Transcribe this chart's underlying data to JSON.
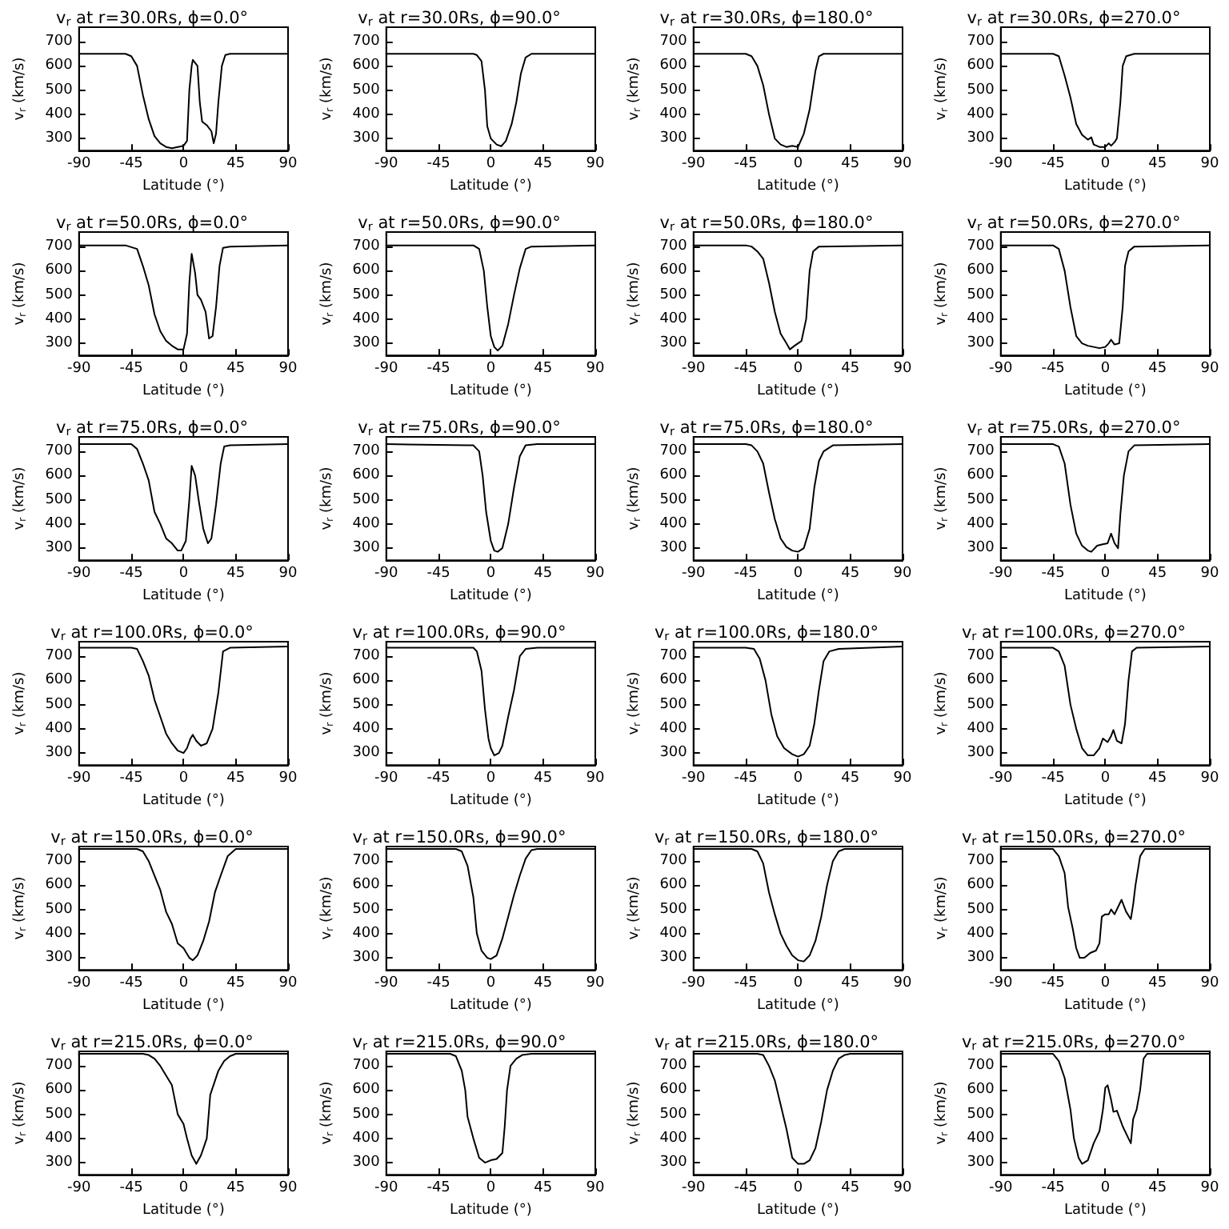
{
  "chart_data": [
    {
      "type": "line",
      "title": "v$_{r}$ at r=30.0Rs, ϕ=0.0°",
      "xlabel": "Latitude (°)",
      "ylabel": "v$_{r}$ (km/s)",
      "xlim": [
        -90,
        90
      ],
      "xticks": [
        -90,
        -45,
        0,
        45,
        90
      ],
      "ylim": [
        250,
        760
      ],
      "yticks": [
        300,
        400,
        500,
        600,
        700
      ],
      "grid": false,
      "marker": "none",
      "line_style": "solid",
      "series": [
        {
          "color": "#000000",
          "x": [
            -90,
            -50,
            -45,
            -40,
            -35,
            -30,
            -25,
            -20,
            -15,
            -10,
            -5,
            0,
            3,
            5,
            7,
            8,
            12,
            14,
            16,
            20,
            24,
            26,
            28,
            30,
            33,
            36,
            40,
            90
          ],
          "values": [
            650,
            650,
            640,
            600,
            480,
            380,
            310,
            280,
            265,
            260,
            265,
            270,
            290,
            500,
            600,
            625,
            600,
            450,
            370,
            355,
            330,
            280,
            320,
            450,
            600,
            645,
            650,
            650
          ]
        }
      ]
    },
    {
      "type": "line",
      "title": "v$_{r}$ at r=30.0Rs, ϕ=90.0°",
      "xlabel": "Latitude (°)",
      "ylabel": "v$_{r}$ (km/s)",
      "xlim": [
        -90,
        90
      ],
      "xticks": [
        -90,
        -45,
        0,
        45,
        90
      ],
      "ylim": [
        250,
        760
      ],
      "yticks": [
        300,
        400,
        500,
        600,
        700
      ],
      "grid": false,
      "marker": "none",
      "line_style": "solid",
      "series": [
        {
          "color": "#000000",
          "x": [
            -90,
            -15,
            -12,
            -8,
            -5,
            -3,
            0,
            5,
            9,
            13,
            18,
            22,
            26,
            30,
            35,
            90
          ],
          "values": [
            650,
            650,
            645,
            620,
            500,
            350,
            300,
            275,
            268,
            290,
            360,
            450,
            570,
            635,
            650,
            650
          ]
        }
      ]
    },
    {
      "type": "line",
      "title": "v$_{r}$ at r=30.0Rs, ϕ=180.0°",
      "xlabel": "Latitude (°)",
      "ylabel": "v$_{r}$ (km/s)",
      "xlim": [
        -90,
        90
      ],
      "xticks": [
        -90,
        -45,
        0,
        45,
        90
      ],
      "ylim": [
        250,
        760
      ],
      "yticks": [
        300,
        400,
        500,
        600,
        700
      ],
      "grid": false,
      "marker": "none",
      "line_style": "solid",
      "series": [
        {
          "color": "#000000",
          "x": [
            -90,
            -45,
            -40,
            -35,
            -30,
            -25,
            -20,
            -15,
            -10,
            -5,
            0,
            5,
            10,
            15,
            18,
            22,
            90
          ],
          "values": [
            650,
            650,
            640,
            600,
            520,
            400,
            300,
            275,
            265,
            270,
            265,
            320,
            420,
            580,
            640,
            650,
            650
          ]
        }
      ]
    },
    {
      "type": "line",
      "title": "v$_{r}$ at r=30.0Rs, ϕ=270.0°",
      "xlabel": "Latitude (°)",
      "ylabel": "v$_{r}$ (km/s)",
      "xlim": [
        -90,
        90
      ],
      "xticks": [
        -90,
        -45,
        0,
        45,
        90
      ],
      "ylim": [
        250,
        760
      ],
      "yticks": [
        300,
        400,
        500,
        600,
        700
      ],
      "grid": false,
      "marker": "none",
      "line_style": "solid",
      "series": [
        {
          "color": "#000000",
          "x": [
            -90,
            -45,
            -40,
            -35,
            -30,
            -25,
            -20,
            -15,
            -12,
            -10,
            -5,
            0,
            3,
            5,
            8,
            10,
            13,
            15,
            18,
            25,
            90
          ],
          "values": [
            650,
            650,
            640,
            560,
            470,
            360,
            315,
            295,
            305,
            275,
            265,
            265,
            280,
            270,
            285,
            300,
            450,
            600,
            640,
            650,
            650
          ]
        }
      ]
    },
    {
      "type": "line",
      "title": "v$_{r}$ at r=50.0Rs, ϕ=0.0°",
      "xlabel": "Latitude (°)",
      "ylabel": "v$_{r}$ (km/s)",
      "xlim": [
        -90,
        90
      ],
      "xticks": [
        -90,
        -45,
        0,
        45,
        90
      ],
      "ylim": [
        250,
        760
      ],
      "yticks": [
        300,
        400,
        500,
        600,
        700
      ],
      "grid": false,
      "marker": "none",
      "line_style": "solid",
      "series": [
        {
          "color": "#000000",
          "x": [
            -90,
            -50,
            -40,
            -35,
            -30,
            -25,
            -20,
            -15,
            -10,
            -5,
            0,
            3,
            5,
            7,
            10,
            12,
            15,
            19,
            22,
            25,
            28,
            31,
            34,
            40,
            90
          ],
          "values": [
            705,
            705,
            690,
            620,
            540,
            420,
            350,
            310,
            290,
            275,
            275,
            340,
            550,
            670,
            590,
            500,
            480,
            430,
            320,
            330,
            450,
            620,
            695,
            700,
            705
          ]
        }
      ]
    },
    {
      "type": "line",
      "title": "v$_{r}$ at r=50.0Rs, ϕ=90.0°",
      "xlabel": "Latitude (°)",
      "ylabel": "v$_{r}$ (km/s)",
      "xlim": [
        -90,
        90
      ],
      "xticks": [
        -90,
        -45,
        0,
        45,
        90
      ],
      "ylim": [
        250,
        760
      ],
      "yticks": [
        300,
        400,
        500,
        600,
        700
      ],
      "grid": false,
      "marker": "none",
      "line_style": "solid",
      "series": [
        {
          "color": "#000000",
          "x": [
            -90,
            -15,
            -10,
            -6,
            -3,
            0,
            3,
            6,
            10,
            15,
            20,
            25,
            30,
            35,
            90
          ],
          "values": [
            705,
            705,
            690,
            600,
            450,
            330,
            285,
            270,
            290,
            380,
            500,
            610,
            690,
            700,
            705
          ]
        }
      ]
    },
    {
      "type": "line",
      "title": "v$_{r}$ at r=50.0Rs, ϕ=180.0°",
      "xlabel": "Latitude (°)",
      "ylabel": "v$_{r}$ (km/s)",
      "xlim": [
        -90,
        90
      ],
      "xticks": [
        -90,
        -45,
        0,
        45,
        90
      ],
      "ylim": [
        250,
        760
      ],
      "yticks": [
        300,
        400,
        500,
        600,
        700
      ],
      "grid": false,
      "marker": "none",
      "line_style": "solid",
      "series": [
        {
          "color": "#000000",
          "x": [
            -90,
            -45,
            -40,
            -35,
            -30,
            -25,
            -20,
            -15,
            -10,
            -7,
            -3,
            0,
            3,
            7,
            10,
            13,
            18,
            90
          ],
          "values": [
            705,
            705,
            700,
            680,
            650,
            550,
            430,
            340,
            300,
            275,
            290,
            300,
            310,
            400,
            600,
            680,
            700,
            705
          ]
        }
      ]
    },
    {
      "type": "line",
      "title": "v$_{r}$ at r=50.0Rs, ϕ=270.0°",
      "xlabel": "Latitude (°)",
      "ylabel": "v$_{r}$ (km/s)",
      "xlim": [
        -90,
        90
      ],
      "xticks": [
        -90,
        -45,
        0,
        45,
        90
      ],
      "ylim": [
        250,
        760
      ],
      "yticks": [
        300,
        400,
        500,
        600,
        700
      ],
      "grid": false,
      "marker": "none",
      "line_style": "solid",
      "series": [
        {
          "color": "#000000",
          "x": [
            -90,
            -45,
            -40,
            -35,
            -30,
            -25,
            -20,
            -15,
            -10,
            -5,
            0,
            3,
            5,
            8,
            12,
            15,
            17,
            20,
            25,
            90
          ],
          "values": [
            705,
            705,
            690,
            600,
            450,
            330,
            300,
            290,
            285,
            280,
            285,
            300,
            315,
            295,
            300,
            450,
            620,
            680,
            700,
            705
          ]
        }
      ]
    },
    {
      "type": "line",
      "title": "v$_{r}$ at r=75.0Rs, ϕ=0.0°",
      "xlabel": "Latitude (°)",
      "ylabel": "v$_{r}$ (km/s)",
      "xlim": [
        -90,
        90
      ],
      "xticks": [
        -90,
        -45,
        0,
        45,
        90
      ],
      "ylim": [
        250,
        760
      ],
      "yticks": [
        300,
        400,
        500,
        600,
        700
      ],
      "grid": false,
      "marker": "none",
      "line_style": "solid",
      "series": [
        {
          "color": "#000000",
          "x": [
            -90,
            -45,
            -40,
            -35,
            -30,
            -25,
            -20,
            -15,
            -10,
            -5,
            -2,
            2,
            5,
            7,
            10,
            13,
            17,
            21,
            24,
            28,
            32,
            35,
            40,
            90
          ],
          "values": [
            730,
            730,
            710,
            650,
            580,
            450,
            400,
            340,
            320,
            290,
            290,
            330,
            500,
            640,
            600,
            500,
            380,
            320,
            340,
            480,
            650,
            720,
            725,
            730
          ]
        }
      ]
    },
    {
      "type": "line",
      "title": "v$_{r}$ at r=75.0Rs, ϕ=90.0°",
      "xlabel": "Latitude (°)",
      "ylabel": "v$_{r}$ (km/s)",
      "xlim": [
        -90,
        90
      ],
      "xticks": [
        -90,
        -45,
        0,
        45,
        90
      ],
      "ylim": [
        250,
        760
      ],
      "yticks": [
        300,
        400,
        500,
        600,
        700
      ],
      "grid": false,
      "marker": "none",
      "line_style": "solid",
      "series": [
        {
          "color": "#000000",
          "x": [
            -90,
            -20,
            -15,
            -10,
            -7,
            -4,
            0,
            3,
            6,
            10,
            15,
            20,
            25,
            30,
            40,
            90
          ],
          "values": [
            730,
            725,
            725,
            700,
            600,
            450,
            330,
            290,
            285,
            300,
            400,
            550,
            680,
            725,
            730,
            730
          ]
        }
      ]
    },
    {
      "type": "line",
      "title": "v$_{r}$ at r=75.0Rs, ϕ=180.0°",
      "xlabel": "Latitude (°)",
      "ylabel": "v$_{r}$ (km/s)",
      "xlim": [
        -90,
        90
      ],
      "xticks": [
        -90,
        -45,
        0,
        45,
        90
      ],
      "ylim": [
        250,
        760
      ],
      "yticks": [
        300,
        400,
        500,
        600,
        700
      ],
      "grid": false,
      "marker": "none",
      "line_style": "solid",
      "series": [
        {
          "color": "#000000",
          "x": [
            -90,
            -45,
            -40,
            -35,
            -30,
            -25,
            -20,
            -15,
            -10,
            -5,
            0,
            5,
            10,
            14,
            18,
            22,
            30,
            90
          ],
          "values": [
            730,
            730,
            725,
            700,
            650,
            530,
            420,
            340,
            305,
            290,
            285,
            300,
            380,
            550,
            660,
            700,
            725,
            730
          ]
        }
      ]
    },
    {
      "type": "line",
      "title": "v$_{r}$ at r=75.0Rs, ϕ=270.0°",
      "xlabel": "Latitude (°)",
      "ylabel": "v$_{r}$ (km/s)",
      "xlim": [
        -90,
        90
      ],
      "xticks": [
        -90,
        -45,
        0,
        45,
        90
      ],
      "ylim": [
        250,
        760
      ],
      "yticks": [
        300,
        400,
        500,
        600,
        700
      ],
      "grid": false,
      "marker": "none",
      "line_style": "solid",
      "series": [
        {
          "color": "#000000",
          "x": [
            -90,
            -45,
            -40,
            -35,
            -30,
            -25,
            -20,
            -15,
            -12,
            -7,
            -3,
            2,
            5,
            8,
            11,
            13,
            16,
            20,
            25,
            90
          ],
          "values": [
            730,
            730,
            720,
            650,
            480,
            360,
            310,
            290,
            285,
            310,
            315,
            320,
            360,
            320,
            300,
            440,
            600,
            700,
            725,
            730
          ]
        }
      ]
    },
    {
      "type": "line",
      "title": "v$_{r}$ at r=100.0Rs, ϕ=0.0°",
      "xlabel": "Latitude (°)",
      "ylabel": "v$_{r}$ (km/s)",
      "xlim": [
        -90,
        90
      ],
      "xticks": [
        -90,
        -45,
        0,
        45,
        90
      ],
      "ylim": [
        250,
        760
      ],
      "yticks": [
        300,
        400,
        500,
        600,
        700
      ],
      "grid": false,
      "marker": "none",
      "line_style": "solid",
      "series": [
        {
          "color": "#000000",
          "x": [
            -90,
            -45,
            -40,
            -35,
            -30,
            -25,
            -20,
            -15,
            -10,
            -5,
            0,
            3,
            6,
            8,
            11,
            15,
            20,
            25,
            30,
            34,
            40,
            90
          ],
          "values": [
            735,
            735,
            730,
            680,
            620,
            520,
            450,
            380,
            340,
            310,
            300,
            320,
            360,
            375,
            350,
            330,
            340,
            400,
            550,
            720,
            735,
            740
          ]
        }
      ]
    },
    {
      "type": "line",
      "title": "v$_{r}$ at r=100.0Rs, ϕ=90.0°",
      "xlabel": "Latitude (°)",
      "ylabel": "v$_{r}$ (km/s)",
      "xlim": [
        -90,
        90
      ],
      "xticks": [
        -90,
        -45,
        0,
        45,
        90
      ],
      "ylim": [
        250,
        760
      ],
      "yticks": [
        300,
        400,
        500,
        600,
        700
      ],
      "grid": false,
      "marker": "none",
      "line_style": "solid",
      "series": [
        {
          "color": "#000000",
          "x": [
            -90,
            -15,
            -12,
            -8,
            -5,
            -2,
            0,
            3,
            7,
            10,
            15,
            20,
            25,
            30,
            40,
            90
          ],
          "values": [
            735,
            735,
            720,
            640,
            480,
            360,
            320,
            290,
            300,
            330,
            450,
            560,
            700,
            730,
            735,
            735
          ]
        }
      ]
    },
    {
      "type": "line",
      "title": "v$_{r}$ at r=100.0Rs, ϕ=180.0°",
      "xlabel": "Latitude (°)",
      "ylabel": "v$_{r}$ (km/s)",
      "xlim": [
        -90,
        90
      ],
      "xticks": [
        -90,
        -45,
        0,
        45,
        90
      ],
      "ylim": [
        250,
        760
      ],
      "yticks": [
        300,
        400,
        500,
        600,
        700
      ],
      "grid": false,
      "marker": "none",
      "line_style": "solid",
      "series": [
        {
          "color": "#000000",
          "x": [
            -90,
            -45,
            -38,
            -33,
            -28,
            -23,
            -18,
            -12,
            -5,
            0,
            5,
            10,
            14,
            18,
            22,
            27,
            35,
            90
          ],
          "values": [
            735,
            735,
            730,
            690,
            600,
            460,
            370,
            320,
            295,
            285,
            295,
            330,
            420,
            560,
            680,
            720,
            730,
            740
          ]
        }
      ]
    },
    {
      "type": "line",
      "title": "v$_{r}$ at r=100.0Rs, ϕ=270.0°",
      "xlabel": "Latitude (°)",
      "ylabel": "v$_{r}$ (km/s)",
      "xlim": [
        -90,
        90
      ],
      "xticks": [
        -90,
        -45,
        0,
        45,
        90
      ],
      "ylim": [
        250,
        760
      ],
      "yticks": [
        300,
        400,
        500,
        600,
        700
      ],
      "grid": false,
      "marker": "none",
      "line_style": "solid",
      "series": [
        {
          "color": "#000000",
          "x": [
            -90,
            -45,
            -40,
            -35,
            -30,
            -25,
            -20,
            -15,
            -10,
            -5,
            -2,
            2,
            5,
            7,
            10,
            14,
            17,
            20,
            23,
            27,
            90
          ],
          "values": [
            735,
            735,
            720,
            660,
            500,
            400,
            320,
            290,
            290,
            320,
            360,
            345,
            370,
            395,
            350,
            340,
            420,
            600,
            720,
            735,
            740
          ]
        }
      ]
    },
    {
      "type": "line",
      "title": "v$_{r}$ at r=150.0Rs, ϕ=0.0°",
      "xlabel": "Latitude (°)",
      "ylabel": "v$_{r}$ (km/s)",
      "xlim": [
        -90,
        90
      ],
      "xticks": [
        -90,
        -45,
        0,
        45,
        90
      ],
      "ylim": [
        250,
        760
      ],
      "yticks": [
        300,
        400,
        500,
        600,
        700
      ],
      "grid": false,
      "marker": "none",
      "line_style": "solid",
      "series": [
        {
          "color": "#000000",
          "x": [
            -90,
            -40,
            -35,
            -30,
            -25,
            -20,
            -15,
            -10,
            -5,
            0,
            5,
            8,
            12,
            17,
            22,
            27,
            32,
            38,
            45,
            90
          ],
          "values": [
            750,
            750,
            740,
            700,
            640,
            580,
            490,
            440,
            360,
            340,
            300,
            290,
            310,
            370,
            450,
            570,
            640,
            720,
            750,
            750
          ]
        }
      ]
    },
    {
      "type": "line",
      "title": "v$_{r}$ at r=150.0Rs, ϕ=90.0°",
      "xlabel": "Latitude (°)",
      "ylabel": "v$_{r}$ (km/s)",
      "xlim": [
        -90,
        90
      ],
      "xticks": [
        -90,
        -45,
        0,
        45,
        90
      ],
      "ylim": [
        250,
        760
      ],
      "yticks": [
        300,
        400,
        500,
        600,
        700
      ],
      "grid": false,
      "marker": "none",
      "line_style": "solid",
      "series": [
        {
          "color": "#000000",
          "x": [
            -90,
            -30,
            -25,
            -20,
            -15,
            -12,
            -8,
            -3,
            0,
            5,
            10,
            15,
            20,
            25,
            30,
            35,
            40,
            90
          ],
          "values": [
            750,
            750,
            740,
            680,
            550,
            400,
            330,
            300,
            295,
            310,
            380,
            470,
            560,
            640,
            710,
            745,
            750,
            750
          ]
        }
      ]
    },
    {
      "type": "line",
      "title": "v$_{r}$ at r=150.0Rs, ϕ=180.0°",
      "xlabel": "Latitude (°)",
      "ylabel": "v$_{r}$ (km/s)",
      "xlim": [
        -90,
        90
      ],
      "xticks": [
        -90,
        -45,
        0,
        45,
        90
      ],
      "ylim": [
        250,
        760
      ],
      "yticks": [
        300,
        400,
        500,
        600,
        700
      ],
      "grid": false,
      "marker": "none",
      "line_style": "solid",
      "series": [
        {
          "color": "#000000",
          "x": [
            -90,
            -40,
            -35,
            -30,
            -25,
            -20,
            -15,
            -10,
            -5,
            0,
            5,
            10,
            15,
            20,
            25,
            30,
            35,
            40,
            90
          ],
          "values": [
            750,
            750,
            740,
            690,
            570,
            480,
            400,
            350,
            310,
            290,
            285,
            310,
            370,
            470,
            600,
            700,
            740,
            750,
            750
          ]
        }
      ]
    },
    {
      "type": "line",
      "title": "v$_{r}$ at r=150.0Rs, ϕ=270.0°",
      "xlabel": "Latitude (°)",
      "ylabel": "v$_{r}$ (km/s)",
      "xlim": [
        -90,
        90
      ],
      "xticks": [
        -90,
        -45,
        0,
        45,
        90
      ],
      "ylim": [
        250,
        760
      ],
      "yticks": [
        300,
        400,
        500,
        600,
        700
      ],
      "grid": false,
      "marker": "none",
      "line_style": "solid",
      "series": [
        {
          "color": "#000000",
          "x": [
            -90,
            -45,
            -40,
            -35,
            -32,
            -28,
            -25,
            -22,
            -18,
            -13,
            -8,
            -5,
            -3,
            0,
            3,
            5,
            8,
            14,
            18,
            22,
            24,
            26,
            30,
            34,
            90
          ],
          "values": [
            750,
            750,
            720,
            650,
            510,
            420,
            340,
            300,
            300,
            320,
            330,
            360,
            470,
            480,
            480,
            500,
            480,
            540,
            490,
            460,
            520,
            600,
            720,
            750,
            750
          ]
        }
      ]
    },
    {
      "type": "line",
      "title": "v$_{r}$ at r=215.0Rs, ϕ=0.0°",
      "xlabel": "Latitude (°)",
      "ylabel": "v$_{r}$ (km/s)",
      "xlim": [
        -90,
        90
      ],
      "xticks": [
        -90,
        -45,
        0,
        45,
        90
      ],
      "ylim": [
        250,
        760
      ],
      "yticks": [
        300,
        400,
        500,
        600,
        700
      ],
      "grid": false,
      "marker": "none",
      "line_style": "solid",
      "series": [
        {
          "color": "#000000",
          "x": [
            -90,
            -35,
            -30,
            -25,
            -20,
            -15,
            -10,
            -5,
            0,
            3,
            7,
            11,
            15,
            20,
            23,
            30,
            35,
            40,
            45,
            90
          ],
          "values": [
            750,
            750,
            745,
            730,
            700,
            660,
            620,
            500,
            460,
            400,
            330,
            295,
            330,
            400,
            580,
            680,
            720,
            740,
            750,
            750
          ]
        }
      ]
    },
    {
      "type": "line",
      "title": "v$_{r}$ at r=215.0Rs, ϕ=90.0°",
      "xlabel": "Latitude (°)",
      "ylabel": "v$_{r}$ (km/s)",
      "xlim": [
        -90,
        90
      ],
      "xticks": [
        -90,
        -45,
        0,
        45,
        90
      ],
      "ylim": [
        250,
        760
      ],
      "yticks": [
        300,
        400,
        500,
        600,
        700
      ],
      "grid": false,
      "marker": "none",
      "line_style": "solid",
      "series": [
        {
          "color": "#000000",
          "x": [
            -90,
            -35,
            -30,
            -25,
            -22,
            -20,
            -15,
            -10,
            -5,
            0,
            5,
            10,
            12,
            14,
            17,
            22,
            27,
            35,
            90
          ],
          "values": [
            750,
            750,
            740,
            680,
            600,
            490,
            400,
            320,
            300,
            310,
            315,
            340,
            450,
            600,
            700,
            730,
            745,
            750,
            750
          ]
        }
      ]
    },
    {
      "type": "line",
      "title": "v$_{r}$ at r=215.0Rs, ϕ=180.0°",
      "xlabel": "Latitude (°)",
      "ylabel": "v$_{r}$ (km/s)",
      "xlim": [
        -90,
        90
      ],
      "xticks": [
        -90,
        -45,
        0,
        45,
        90
      ],
      "ylim": [
        250,
        760
      ],
      "yticks": [
        300,
        400,
        500,
        600,
        700
      ],
      "grid": false,
      "marker": "none",
      "line_style": "solid",
      "series": [
        {
          "color": "#000000",
          "x": [
            -90,
            -35,
            -30,
            -25,
            -20,
            -15,
            -10,
            -5,
            0,
            5,
            10,
            15,
            20,
            25,
            30,
            35,
            40,
            45,
            90
          ],
          "values": [
            750,
            750,
            745,
            700,
            640,
            540,
            440,
            320,
            295,
            295,
            310,
            360,
            470,
            600,
            680,
            730,
            745,
            750,
            750
          ]
        }
      ]
    },
    {
      "type": "line",
      "title": "v$_{r}$ at r=215.0Rs, ϕ=270.0°",
      "xlabel": "Latitude (°)",
      "ylabel": "v$_{r}$ (km/s)",
      "xlim": [
        -90,
        90
      ],
      "xticks": [
        -90,
        -45,
        0,
        45,
        90
      ],
      "ylim": [
        250,
        760
      ],
      "yticks": [
        300,
        400,
        500,
        600,
        700
      ],
      "grid": false,
      "marker": "none",
      "line_style": "solid",
      "series": [
        {
          "color": "#000000",
          "x": [
            -90,
            -45,
            -40,
            -35,
            -30,
            -27,
            -23,
            -20,
            -15,
            -10,
            -5,
            -2,
            0,
            2,
            5,
            7,
            10,
            15,
            20,
            22,
            24,
            27,
            30,
            33,
            36,
            90
          ],
          "values": [
            750,
            750,
            720,
            650,
            520,
            400,
            320,
            295,
            310,
            380,
            430,
            520,
            610,
            620,
            560,
            510,
            515,
            450,
            400,
            380,
            480,
            520,
            600,
            730,
            750,
            750
          ]
        }
      ]
    }
  ]
}
